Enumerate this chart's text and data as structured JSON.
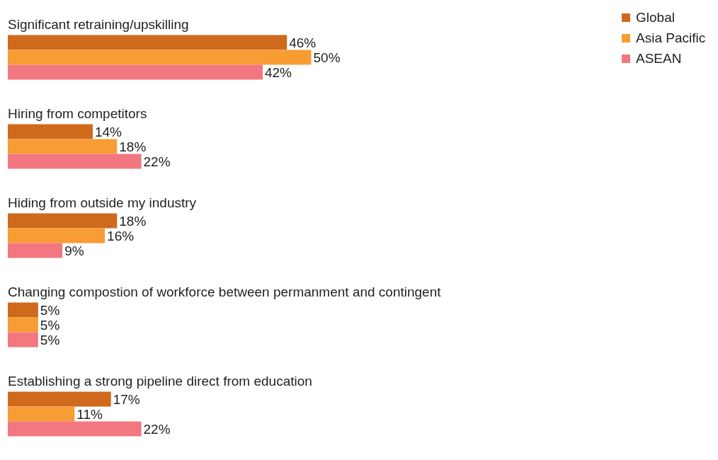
{
  "chart_data": {
    "type": "bar",
    "orientation": "horizontal",
    "legend": "top right",
    "categories": [
      "Significant retraining/upskilling",
      "Hiring from competitors",
      "Hiding from outside my industry",
      "Changing compostion of workforce between permanment and contingent",
      "Establishing a strong pipeline direct from education"
    ],
    "series": [
      {
        "name": "Global",
        "color": "#cf6a1d",
        "values": [
          46,
          14,
          18,
          5,
          17
        ],
        "value_labels": [
          "46%",
          "14%",
          "18%",
          "5%",
          "17%"
        ]
      },
      {
        "name": "Asia Pacific",
        "color": "#f89c34",
        "values": [
          50,
          18,
          16,
          5,
          11
        ],
        "value_labels": [
          "50%",
          "18%",
          "16%",
          "5%",
          "11%"
        ]
      },
      {
        "name": "ASEAN",
        "color": "#f27780",
        "values": [
          42,
          22,
          9,
          5,
          22
        ],
        "value_labels": [
          "42%",
          "22%",
          "9%",
          "5%",
          "22%"
        ]
      }
    ]
  }
}
